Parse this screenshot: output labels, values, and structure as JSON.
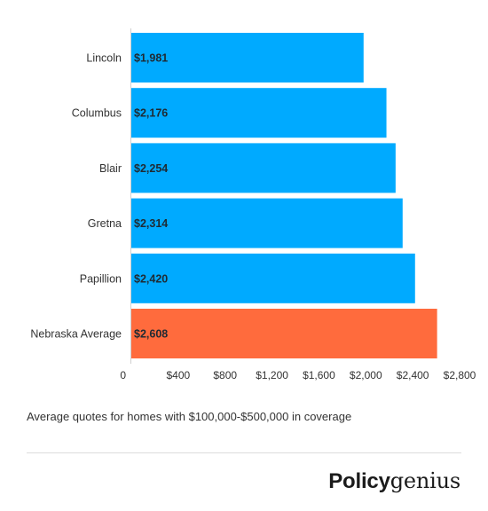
{
  "chart_data": {
    "type": "bar",
    "orientation": "horizontal",
    "categories": [
      "Lincoln",
      "Columbus",
      "Blair",
      "Gretna",
      "Papillion",
      "Nebraska Average"
    ],
    "values": [
      1981,
      2176,
      2254,
      2314,
      2420,
      2608
    ],
    "value_labels": [
      "$1,981",
      "$2,176",
      "$2,254",
      "$2,314",
      "$2,420",
      "$2,608"
    ],
    "colors": [
      "#00aaff",
      "#00aaff",
      "#00aaff",
      "#00aaff",
      "#00aaff",
      "#ff6b3d"
    ],
    "xlim": [
      0,
      2800
    ],
    "x_ticks": [
      0,
      400,
      800,
      1200,
      1600,
      2000,
      2400,
      2800
    ],
    "x_tick_labels": [
      "0",
      "$400",
      "$800",
      "$1,200",
      "$1,600",
      "$2,000",
      "$2,400",
      "$2,800"
    ],
    "grid": false,
    "legend": "none"
  },
  "footnote": "Average quotes for homes with $100,000-$500,000 in coverage",
  "logo": {
    "part1": "Policy",
    "part2": "genius"
  }
}
